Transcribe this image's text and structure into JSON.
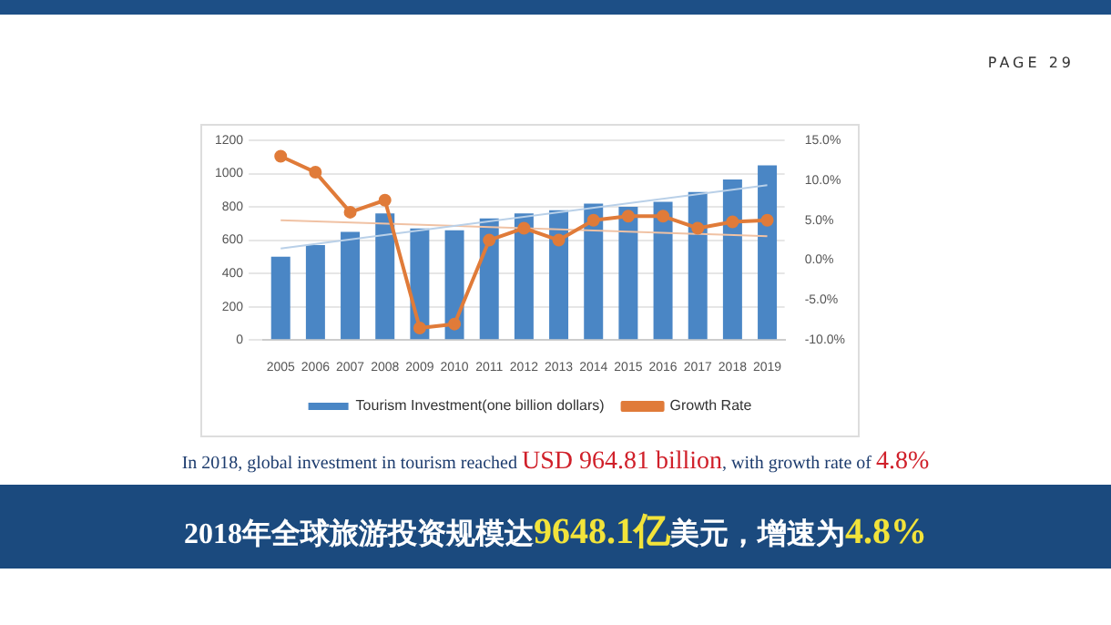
{
  "chart_data": {
    "type": "bar",
    "categories": [
      "2005",
      "2006",
      "2007",
      "2008",
      "2009",
      "2010",
      "2011",
      "2012",
      "2013",
      "2014",
      "2015",
      "2016",
      "2017",
      "2018",
      "2019"
    ],
    "series": [
      {
        "name": "Tourism Investment(one billion dollars)",
        "color": "#4a86c5",
        "values": [
          500,
          570,
          650,
          760,
          670,
          660,
          730,
          760,
          780,
          820,
          800,
          830,
          890,
          964.81,
          1050
        ]
      },
      {
        "name": "Growth Rate",
        "type": "line",
        "axis": "y2",
        "color": "#e07b39",
        "marker": "circle",
        "values": [
          13.0,
          11.0,
          6.0,
          7.5,
          -8.5,
          -8.0,
          2.5,
          4.0,
          2.5,
          5.0,
          5.5,
          5.5,
          4.0,
          4.8,
          5.0
        ]
      },
      {
        "type": "line",
        "color": "#b9d0e8",
        "marker": "none",
        "values": [
          550,
          null,
          null,
          null,
          null,
          null,
          null,
          null,
          null,
          null,
          null,
          null,
          null,
          null,
          930
        ]
      },
      {
        "type": "line",
        "axis": "y2",
        "color": "#f0c2a4",
        "marker": "none",
        "values": [
          5.0,
          null,
          null,
          null,
          null,
          null,
          null,
          null,
          null,
          null,
          null,
          null,
          null,
          null,
          3.0
        ]
      }
    ],
    "ylim": [
      0,
      1200
    ],
    "yticks": [
      0,
      200,
      400,
      600,
      800,
      1000,
      1200
    ],
    "y2lim": [
      -10,
      15
    ],
    "y2ticks": [
      {
        "value": -10,
        "label": "-10.0%"
      },
      {
        "value": -5,
        "label": "-5.0%"
      },
      {
        "value": 0,
        "label": "0.0%"
      },
      {
        "value": 5,
        "label": "5.0%"
      },
      {
        "value": 10,
        "label": "10.0%"
      },
      {
        "value": 15,
        "label": "15.0%"
      }
    ],
    "grid": "y",
    "legend": "bottom",
    "line_style": "solid",
    "annotations": [
      "PAGE 29",
      "In 2018, global investment in tourism reached ",
      "USD 964.81 billion",
      ", with growth rate of ",
      "4.8%",
      "2018年全球旅游投资规模达",
      "9648.1亿",
      "美元，增速为",
      "4.8%"
    ]
  }
}
